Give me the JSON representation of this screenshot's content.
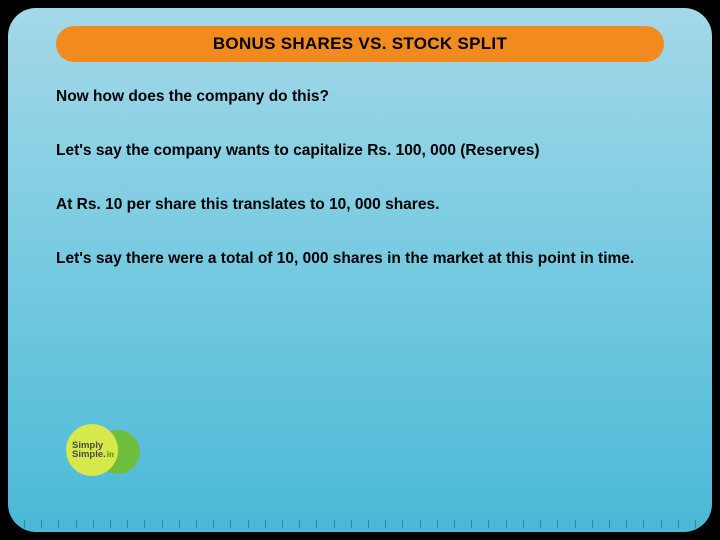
{
  "title": "BONUS SHARES VS. STOCK SPLIT",
  "paragraphs": {
    "p1": "Now how does the company do this?",
    "p2": "Let's say the company wants to capitalize Rs. 100, 000 (Reserves)",
    "p3": "At Rs. 10 per share this translates to 10, 000 shares.",
    "p4": "Let's say there were a total of 10, 000 shares in the market at this point in time."
  },
  "logo": {
    "line1": "Simply",
    "line2": "Simple.",
    "suffix": "in"
  },
  "colors": {
    "title_bg": "#f18a1f",
    "slide_top": "#a4d8e8",
    "slide_bottom": "#4ab9d6",
    "logo_front": "#d6e84a",
    "logo_back": "#6fbf3f"
  }
}
